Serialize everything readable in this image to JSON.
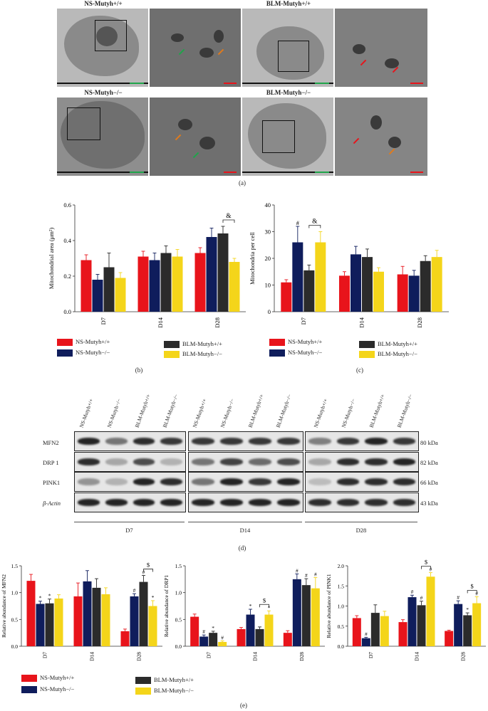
{
  "panel_a": {
    "labels": {
      "ns_wt": "NS-Mutyh+/+",
      "blm_wt": "BLM-Mutyh+/+",
      "ns_ko": "NS-Mutyh−/−",
      "blm_ko": "BLM-Mutyh−/−"
    },
    "letter": "(a)"
  },
  "colors": {
    "ns_wt": "#e8141b",
    "ns_ko": "#0f1d5c",
    "blm_wt": "#2b2b2b",
    "blm_ko": "#f4d51a"
  },
  "legend": {
    "ns_wt": "NS-Mutyh+/+",
    "ns_ko": "NS-Mutyh−/−",
    "blm_wt": "BLM-Mutyh+/+",
    "blm_ko": "BLM-Mutyh−/−"
  },
  "letters": {
    "b": "(b)",
    "c": "(c)",
    "d": "(d)",
    "e": "(e)"
  },
  "chart_data": [
    {
      "id": "b",
      "type": "bar",
      "ylabel": "Mitochondrial area (μm²)",
      "categories": [
        "D7",
        "D14",
        "D28"
      ],
      "ylim": [
        0,
        0.6
      ],
      "yticks": [
        "0.0",
        "0.2",
        "0.4",
        "0.6"
      ],
      "series": [
        {
          "key": "ns_wt",
          "values": [
            0.29,
            0.31,
            0.33
          ],
          "err": [
            0.03,
            0.03,
            0.03
          ]
        },
        {
          "key": "ns_ko",
          "values": [
            0.18,
            0.29,
            0.42
          ],
          "err": [
            0.03,
            0.04,
            0.05
          ]
        },
        {
          "key": "blm_wt",
          "values": [
            0.25,
            0.33,
            0.44
          ],
          "err": [
            0.08,
            0.04,
            0.04
          ]
        },
        {
          "key": "blm_ko",
          "values": [
            0.19,
            0.31,
            0.28
          ],
          "err": [
            0.03,
            0.04,
            0.02
          ]
        }
      ],
      "annotations": [
        {
          "text": "&",
          "group": 2,
          "from": 2,
          "to": 3
        }
      ]
    },
    {
      "id": "c",
      "type": "bar",
      "ylabel": "Mitochondria per cell",
      "categories": [
        "D7",
        "D14",
        "D28"
      ],
      "ylim": [
        0,
        40
      ],
      "yticks": [
        "0",
        "10",
        "20",
        "30",
        "40"
      ],
      "series": [
        {
          "key": "ns_wt",
          "values": [
            11,
            13.5,
            14
          ],
          "err": [
            1,
            1.5,
            3
          ]
        },
        {
          "key": "ns_ko",
          "values": [
            26,
            21.5,
            13.5
          ],
          "err": [
            6,
            3,
            2
          ]
        },
        {
          "key": "blm_wt",
          "values": [
            15.5,
            20.5,
            19
          ],
          "err": [
            2,
            3,
            2
          ]
        },
        {
          "key": "blm_ko",
          "values": [
            26,
            15,
            20.5
          ],
          "err": [
            4,
            1.5,
            2.5
          ]
        }
      ],
      "marks": [
        {
          "text": "#",
          "group": 0,
          "bar": 1
        }
      ],
      "annotations": [
        {
          "text": "&",
          "group": 0,
          "from": 2,
          "to": 3
        }
      ]
    },
    {
      "id": "e1",
      "type": "bar",
      "ylabel": "Relative abundance of MFN2",
      "categories": [
        "D7",
        "D14",
        "D28"
      ],
      "ylim": [
        0,
        1.5
      ],
      "yticks": [
        "0.0",
        "0.5",
        "1.0",
        "1.5"
      ],
      "series": [
        {
          "key": "ns_wt",
          "values": [
            1.22,
            0.93,
            0.28
          ],
          "err": [
            0.12,
            0.25,
            0.04
          ]
        },
        {
          "key": "ns_ko",
          "values": [
            0.79,
            1.21,
            0.93
          ],
          "err": [
            0.05,
            0.2,
            0.05
          ]
        },
        {
          "key": "blm_wt",
          "values": [
            0.8,
            1.09,
            1.2
          ],
          "err": [
            0.08,
            0.17,
            0.12
          ]
        },
        {
          "key": "blm_ko",
          "values": [
            0.89,
            0.97,
            0.75
          ],
          "err": [
            0.07,
            0.12,
            0.1
          ]
        }
      ],
      "marks": [
        {
          "text": "*",
          "group": 0,
          "bar": 1
        },
        {
          "text": "*",
          "group": 0,
          "bar": 2
        },
        {
          "text": "#",
          "group": 2,
          "bar": 1
        },
        {
          "text": "#",
          "group": 2,
          "bar": 2
        },
        {
          "text": "*",
          "group": 2,
          "bar": 3
        }
      ],
      "annotations": [
        {
          "text": "$",
          "group": 2,
          "from": 2,
          "to": 3
        }
      ]
    },
    {
      "id": "e2",
      "type": "bar",
      "ylabel": "Relative abundance of DRP1",
      "categories": [
        "D7",
        "D14",
        "D28"
      ],
      "ylim": [
        0,
        1.5
      ],
      "yticks": [
        "0.0",
        "0.5",
        "1.0",
        "1.5"
      ],
      "series": [
        {
          "key": "ns_wt",
          "values": [
            0.55,
            0.32,
            0.25
          ],
          "err": [
            0.05,
            0.03,
            0.04
          ]
        },
        {
          "key": "ns_ko",
          "values": [
            0.18,
            0.59,
            1.25
          ],
          "err": [
            0.03,
            0.1,
            0.1
          ]
        },
        {
          "key": "blm_wt",
          "values": [
            0.25,
            0.32,
            1.14
          ],
          "err": [
            0.03,
            0.04,
            0.12
          ]
        },
        {
          "key": "blm_ko",
          "values": [
            0.08,
            0.59,
            1.08
          ],
          "err": [
            0.02,
            0.07,
            0.2
          ]
        }
      ],
      "marks": [
        {
          "text": "#",
          "group": 0,
          "bar": 1
        },
        {
          "text": "*",
          "group": 0,
          "bar": 2
        },
        {
          "text": "#",
          "group": 0,
          "bar": 3
        },
        {
          "text": "*",
          "group": 1,
          "bar": 1
        },
        {
          "text": "*",
          "group": 1,
          "bar": 3
        },
        {
          "text": "#",
          "group": 2,
          "bar": 1
        },
        {
          "text": "#",
          "group": 2,
          "bar": 2
        },
        {
          "text": "#",
          "group": 2,
          "bar": 3
        }
      ],
      "annotations": [
        {
          "text": "$",
          "group": 1,
          "from": 2,
          "to": 3
        }
      ]
    },
    {
      "id": "e3",
      "type": "bar",
      "ylabel": "Relative abundance of PINK1",
      "categories": [
        "D7",
        "D14",
        "D28"
      ],
      "ylim": [
        0,
        2.0
      ],
      "yticks": [
        "0.0",
        "0.5",
        "1.0",
        "1.5",
        "2.0"
      ],
      "series": [
        {
          "key": "ns_wt",
          "values": [
            0.7,
            0.6,
            0.38
          ],
          "err": [
            0.06,
            0.06,
            0.02
          ]
        },
        {
          "key": "ns_ko",
          "values": [
            0.2,
            1.22,
            1.05
          ],
          "err": [
            0.02,
            0.05,
            0.08
          ]
        },
        {
          "key": "blm_wt",
          "values": [
            0.83,
            1.02,
            0.77
          ],
          "err": [
            0.2,
            0.1,
            0.06
          ]
        },
        {
          "key": "blm_ko",
          "values": [
            0.75,
            1.73,
            1.07
          ],
          "err": [
            0.12,
            0.1,
            0.16
          ]
        }
      ],
      "marks": [
        {
          "text": "#",
          "group": 0,
          "bar": 1
        },
        {
          "text": "#",
          "group": 1,
          "bar": 1
        },
        {
          "text": "#",
          "group": 1,
          "bar": 2
        },
        {
          "text": "#",
          "group": 1,
          "bar": 3
        },
        {
          "text": "#",
          "group": 2,
          "bar": 1
        },
        {
          "text": "*",
          "group": 2,
          "bar": 2
        },
        {
          "text": "#",
          "group": 2,
          "bar": 3
        }
      ],
      "annotations": [
        {
          "text": "$",
          "group": 1,
          "from": 2,
          "to": 3
        },
        {
          "text": "$",
          "group": 2,
          "from": 2,
          "to": 3
        }
      ]
    }
  ],
  "blot": {
    "lanes": [
      "NS-Mutyh+/+",
      "NS-Mutyh−/−",
      "BLM-Mutyh+/+",
      "BLM-Mutyh−/−"
    ],
    "rows": [
      {
        "name": "MFN2",
        "kda": "80 kDa"
      },
      {
        "name": "DRP 1",
        "kda": "82 kDa"
      },
      {
        "name": "PINK1",
        "kda": "66 kDa"
      },
      {
        "name": "β-Actin",
        "kda": "43 kDa"
      }
    ],
    "timepoints": [
      "D7",
      "D14",
      "D28"
    ]
  }
}
